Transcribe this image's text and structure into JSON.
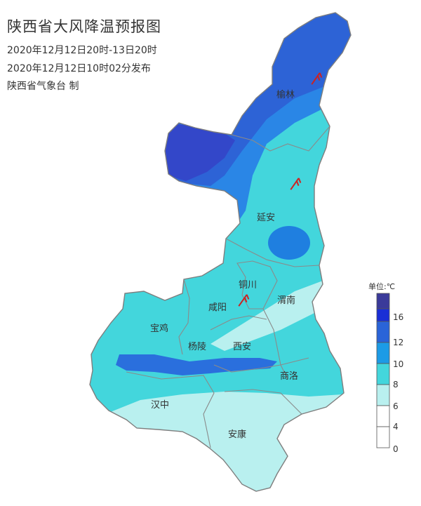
{
  "header": {
    "title": "陕西省大风降温预报图",
    "valid_period": "2020年12月12日20时-13日20时",
    "issue_time": "2020年12月12日10时02分发布",
    "issuer": "陕西省气象台 制"
  },
  "cities": {
    "yulin": "榆林",
    "yanan": "延安",
    "tongchuan": "铜川",
    "xianyang": "咸阳",
    "weinan": "渭南",
    "baoji": "宝鸡",
    "yangling": "杨陵",
    "xian": "西安",
    "shangluo": "商洛",
    "hanzhong": "汉中",
    "ankang": "安康"
  },
  "legend": {
    "title": "单位:℃",
    "ticks": [
      "16",
      "12",
      "10",
      "8",
      "6",
      "4",
      "0"
    ],
    "colors": [
      "#3a3a9a",
      "#1a2fd6",
      "#2a64d8",
      "#1c9be6",
      "#43d6dc",
      "#b9f0ef",
      "#ffffff"
    ]
  },
  "map_colors": {
    "cooling_16": "#3a3a9a",
    "cooling_12": "#2d48d8",
    "cooling_10": "#2a64d8",
    "cooling_8": "#1c9be6",
    "cooling_6": "#43d6dc",
    "cooling_4": "#b9f0ef",
    "boundary": "#8a8a8a",
    "wind_marker": "#cc2222"
  },
  "icons": [
    "wind-barb-icon"
  ]
}
